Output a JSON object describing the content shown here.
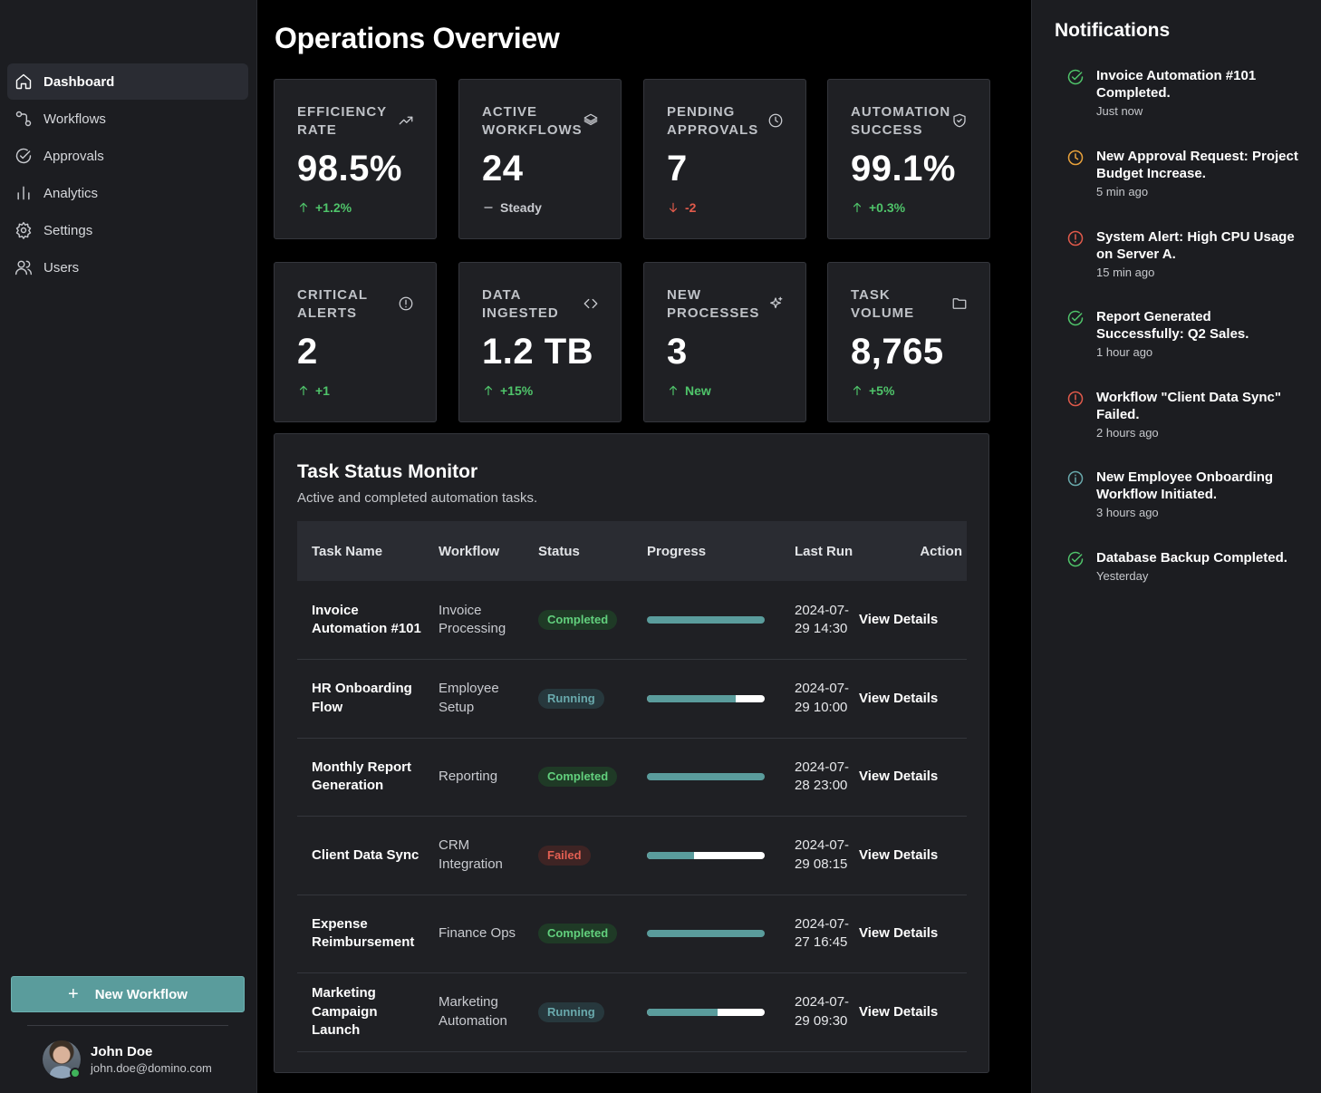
{
  "sidebar": {
    "items": [
      {
        "label": "Dashboard",
        "icon": "home-icon",
        "active": true
      },
      {
        "label": "Workflows",
        "icon": "workflow-icon"
      },
      {
        "label": "Approvals",
        "icon": "check-circle-icon"
      },
      {
        "label": "Analytics",
        "icon": "bar-chart-icon"
      },
      {
        "label": "Settings",
        "icon": "gear-icon"
      },
      {
        "label": "Users",
        "icon": "users-icon"
      }
    ],
    "new_workflow": "New Workflow",
    "user": {
      "name": "John Doe",
      "email": "john.doe@domino.com"
    }
  },
  "main": {
    "title": "Operations Overview",
    "cards": [
      {
        "label": "Efficiency Rate",
        "value": "98.5%",
        "delta": "+1.2%",
        "trend": "up",
        "icon": "trending-up-icon"
      },
      {
        "label": "Active Workflows",
        "value": "24",
        "delta": "Steady",
        "trend": "flat",
        "icon": "layers-icon"
      },
      {
        "label": "Pending Approvals",
        "value": "7",
        "delta": "-2",
        "trend": "down",
        "icon": "clock-icon"
      },
      {
        "label": "Automation Success",
        "value": "99.1%",
        "delta": "+0.3%",
        "trend": "up",
        "icon": "shield-check-icon"
      },
      {
        "label": "Critical Alerts",
        "value": "2",
        "delta": "+1",
        "trend": "up",
        "icon": "alert-circle-icon"
      },
      {
        "label": "Data Ingested",
        "value": "1.2 TB",
        "delta": "+15%",
        "trend": "up",
        "icon": "code-icon"
      },
      {
        "label": "New Processes",
        "value": "3",
        "delta": "New",
        "trend": "up",
        "icon": "sparkles-icon"
      },
      {
        "label": "Task Volume",
        "value": "8,765",
        "delta": "+5%",
        "trend": "up",
        "icon": "folder-icon"
      }
    ],
    "panel": {
      "title": "Task Status Monitor",
      "subtitle": "Active and completed automation tasks.",
      "columns": [
        "Task Name",
        "Workflow",
        "Status",
        "Progress",
        "Last Run",
        "Action"
      ],
      "rows": [
        {
          "name": "Invoice Automation #101",
          "workflow": "Invoice Processing",
          "status": "Completed",
          "progress": 1.0,
          "last_run": "2024-07-29 14:30",
          "action": "View Details"
        },
        {
          "name": "HR Onboarding Flow",
          "workflow": "Employee Setup",
          "status": "Running",
          "progress": 0.75,
          "last_run": "2024-07-29 10:00",
          "action": "View Details"
        },
        {
          "name": "Monthly Report Generation",
          "workflow": "Reporting",
          "status": "Completed",
          "progress": 1.0,
          "last_run": "2024-07-28 23:00",
          "action": "View Details"
        },
        {
          "name": "Client Data Sync",
          "workflow": "CRM Integration",
          "status": "Failed",
          "progress": 0.4,
          "last_run": "2024-07-29 08:15",
          "action": "View Details"
        },
        {
          "name": "Expense Reimbursement",
          "workflow": "Finance Ops",
          "status": "Completed",
          "progress": 1.0,
          "last_run": "2024-07-27 16:45",
          "action": "View Details"
        },
        {
          "name": "Marketing Campaign Launch",
          "workflow": "Marketing Automation",
          "status": "Running",
          "progress": 0.6,
          "last_run": "2024-07-29 09:30",
          "action": "View Details"
        }
      ]
    }
  },
  "notifications": {
    "title": "Notifications",
    "items": [
      {
        "text": "Invoice Automation #101 Completed.",
        "time": "Just now",
        "type": "success",
        "color": "#4fc46a"
      },
      {
        "text": "New Approval Request: Project Budget Increase.",
        "time": "5 min ago",
        "type": "pending",
        "color": "#e9a23b"
      },
      {
        "text": "System Alert: High CPU Usage on Server A.",
        "time": "15 min ago",
        "type": "alert",
        "color": "#e15a4b"
      },
      {
        "text": "Report Generated Successfully: Q2 Sales.",
        "time": "1 hour ago",
        "type": "success",
        "color": "#4fc46a"
      },
      {
        "text": "Workflow \"Client Data Sync\" Failed.",
        "time": "2 hours ago",
        "type": "alert",
        "color": "#e15a4b"
      },
      {
        "text": "New Employee Onboarding Workflow Initiated.",
        "time": "3 hours ago",
        "type": "info",
        "color": "#69a9ac"
      },
      {
        "text": "Database Backup Completed.",
        "time": "Yesterday",
        "type": "success",
        "color": "#4fc46a"
      }
    ]
  },
  "colors": {
    "accent": "#5a9c9c",
    "success": "#4fc46a",
    "danger": "#e15a4b",
    "warning": "#e9a23b"
  }
}
